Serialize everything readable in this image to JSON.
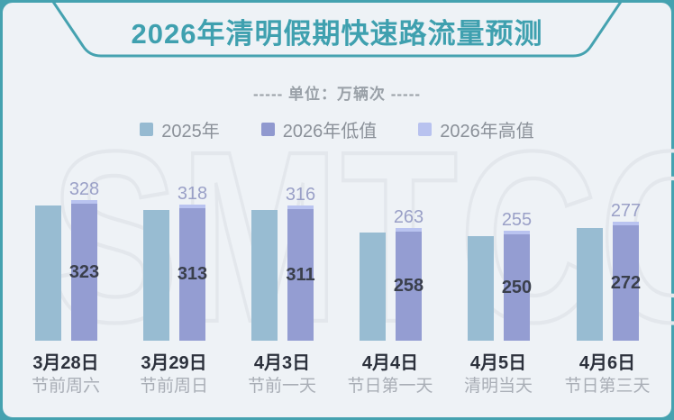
{
  "colors": {
    "frame_teal": "#45a2b0",
    "background": "#eef2f6",
    "title_teal": "#3fa0af",
    "bar_2025": "#98bcd2",
    "bar_2026_low": "#949dd2",
    "bar_2026_high": "#b9c3f0",
    "watermark_outline": "#e3e7ec"
  },
  "title": {
    "text": "2026年清明假期快速路流量预测"
  },
  "unit_line": {
    "text": "----- 单位：万辆次 -----"
  },
  "legend": [
    {
      "label": "2025年",
      "color": "#96bad1"
    },
    {
      "label": "2026年低值",
      "color": "#9099cf"
    },
    {
      "label": "2026年高值",
      "color": "#b8c2ef"
    }
  ],
  "watermark": {
    "text": "SMTCC"
  },
  "chart_data": {
    "type": "bar",
    "title": "2026年清明假期快速路流量预测",
    "unit": "万辆次",
    "categories": [
      {
        "date": "3月28日",
        "desc": "节前周六"
      },
      {
        "date": "3月29日",
        "desc": "节前周日"
      },
      {
        "date": "4月3日",
        "desc": "节前一天"
      },
      {
        "date": "4月4日",
        "desc": "节日第一天"
      },
      {
        "date": "4月5日",
        "desc": "清明当天"
      },
      {
        "date": "4月6日",
        "desc": "节日第三天"
      }
    ],
    "series": [
      {
        "name": "2025年",
        "labeled": false,
        "values_estimated": [
          318,
          308,
          309,
          255,
          247,
          265
        ]
      },
      {
        "name": "2026年低值",
        "labeled": true,
        "values": [
          323,
          313,
          311,
          258,
          250,
          272
        ]
      },
      {
        "name": "2026年高值",
        "labeled": true,
        "values": [
          328,
          318,
          316,
          263,
          255,
          277
        ]
      }
    ],
    "ylim": [
      0,
      350
    ],
    "grid": false,
    "legend_position": "top"
  }
}
